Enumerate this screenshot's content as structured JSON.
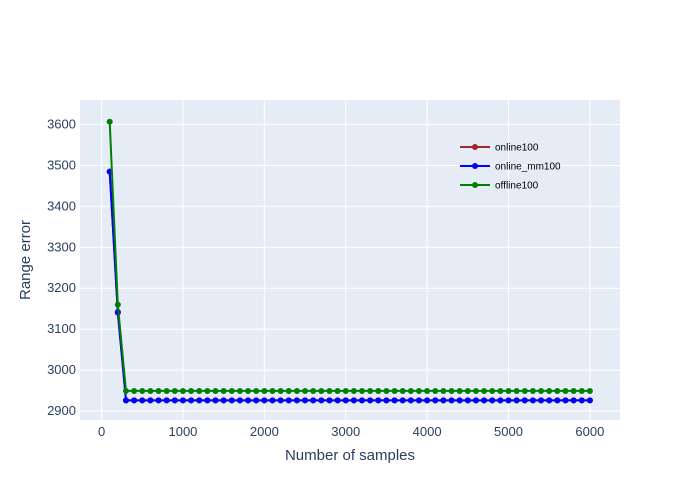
{
  "chart_data": {
    "type": "line",
    "title": "",
    "xlabel": "Number of samples",
    "ylabel": "Range error",
    "xlim": [
      -265,
      6370
    ],
    "ylim": [
      2878,
      3660
    ],
    "xticks": [
      0,
      1000,
      2000,
      3000,
      4000,
      5000,
      6000
    ],
    "yticks": [
      2900,
      3000,
      3100,
      3200,
      3300,
      3400,
      3500,
      3600
    ],
    "grid": true,
    "legend_position": "top-right",
    "colors": {
      "plot_bg": "#e5ecf6",
      "grid": "#ffffff",
      "text": "#2a3f5f"
    },
    "series": [
      {
        "name": "online100",
        "color": "#a3282c",
        "first_values": [
          3485,
          3140
        ],
        "steady_value": 2926
      },
      {
        "name": "online_mm100",
        "color": "#0000ff",
        "first_values": [
          3485,
          3142
        ],
        "steady_value": 2926
      },
      {
        "name": "offline100",
        "color": "#008000",
        "first_values": [
          3607,
          3160
        ],
        "steady_value": 2949
      }
    ],
    "x_start": 100,
    "x_end": 6000,
    "x_step": 100
  }
}
